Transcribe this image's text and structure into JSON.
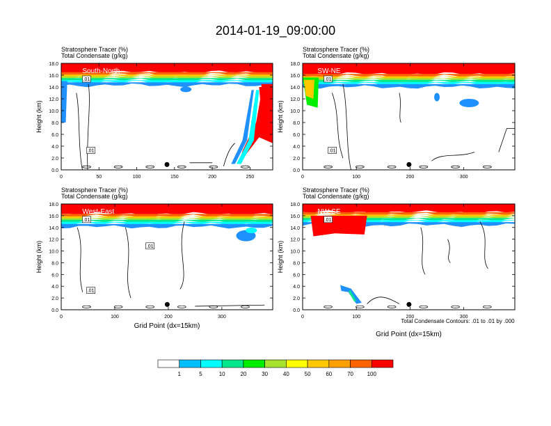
{
  "page_title": "2014-01-19_09:00:00",
  "label_tracer": "Stratosphere Tracer   (%)",
  "label_condensate": "Total Condensate   (g/kg)",
  "contour_note": "Total Condensate Contours: .01 to .01 by .000",
  "colorbar_labels": [
    "1",
    "5",
    "10",
    "20",
    "30",
    "40",
    "50",
    "60",
    "70",
    "100"
  ],
  "colors": {
    "levels": [
      "#ffffff",
      "#1e90ff",
      "#00bfff",
      "#00ffff",
      "#00e88a",
      "#00ee00",
      "#a6e22e",
      "#ffff00",
      "#ffc800",
      "#ffa000",
      "#ff6400",
      "#ff0000"
    ],
    "accent_red": "#ff1a00"
  },
  "chart_data": [
    {
      "type": "heatmap",
      "name": "panel-south-north",
      "cross_section": "South-North",
      "title_lines": [
        "Stratosphere Tracer   (%)",
        "Total Condensate   (g/kg)"
      ],
      "xlabel": "",
      "ylabel": "Height (km)",
      "xlim": [
        0,
        280
      ],
      "ylim": [
        0,
        18
      ],
      "xticks": [
        "0",
        "50",
        "100",
        "150",
        "200",
        "250"
      ],
      "xtick_values": [
        0,
        50,
        100,
        150,
        200,
        250
      ],
      "yticks": [
        "0.0",
        "2.0",
        "4.0",
        "6.0",
        "8.0",
        "10.0",
        "12.0",
        "14.0",
        "16.0",
        "18.0"
      ],
      "contour_labels": [
        ".01",
        ".01"
      ],
      "tropopause_km": 15.5,
      "marker_x": 140
    },
    {
      "type": "heatmap",
      "name": "panel-sw-ne",
      "cross_section": "SW-NE",
      "title_lines": [
        "Stratosphere Tracer   (%)",
        "Total Condensate   (g/kg)"
      ],
      "xlabel": "",
      "ylabel": "Height (km)",
      "xlim": [
        0,
        395
      ],
      "ylim": [
        0,
        18
      ],
      "xticks": [
        "0",
        "100",
        "200",
        "300"
      ],
      "xtick_values": [
        0,
        100,
        200,
        300
      ],
      "yticks": [
        "0.0",
        "2.0",
        "4.0",
        "6.0",
        "8.0",
        "10.0",
        "12.0",
        "14.0",
        "16.0",
        "18.0"
      ],
      "contour_labels": [
        ".01",
        ".01"
      ],
      "tropopause_km": 15.2,
      "marker_x": 198
    },
    {
      "type": "heatmap",
      "name": "panel-west-east",
      "cross_section": "West-East",
      "title_lines": [
        "Stratosphere Tracer   (%)",
        "Total Condensate   (g/kg)"
      ],
      "xlabel": "Grid Point (dx=15km)",
      "ylabel": "Height (km)",
      "xlim": [
        0,
        395
      ],
      "ylim": [
        0,
        18
      ],
      "xticks": [
        "0",
        "100",
        "200",
        "300"
      ],
      "xtick_values": [
        0,
        100,
        200,
        300
      ],
      "yticks": [
        "0.0",
        "2.0",
        "4.0",
        "6.0",
        "8.0",
        "10.0",
        "12.0",
        "14.0",
        "16.0",
        "18.0"
      ],
      "contour_labels": [
        ".01",
        ".01",
        ".01"
      ],
      "tropopause_km": 15.3,
      "marker_x": 198
    },
    {
      "type": "heatmap",
      "name": "panel-nw-se",
      "cross_section": "NW-SE",
      "title_lines": [
        "Stratosphere Tracer   (%)",
        "Total Condensate   (g/kg)"
      ],
      "xlabel": "Grid Point (dx=15km)",
      "ylabel": "Height (km)",
      "xlim": [
        0,
        395
      ],
      "ylim": [
        0,
        18
      ],
      "xticks": [
        "0",
        "100",
        "200",
        "300"
      ],
      "xtick_values": [
        0,
        100,
        200,
        300
      ],
      "yticks": [
        "0.0",
        "2.0",
        "4.0",
        "6.0",
        "8.0",
        "10.0",
        "12.0",
        "14.0",
        "16.0",
        "18.0"
      ],
      "contour_labels": [
        ".01"
      ],
      "tropopause_km": 15.6,
      "marker_x": 198
    }
  ]
}
